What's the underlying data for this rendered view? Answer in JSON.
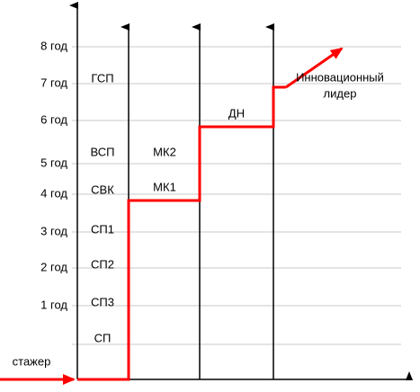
{
  "axis_labels": [
    "8 год",
    "7 год",
    "6 год",
    "5 год",
    "4 год",
    "3 год",
    "2 год",
    "1 год"
  ],
  "columns": [
    {
      "labels": [
        "ГСП",
        "ВСП",
        "СВК",
        "СП1",
        "СП2",
        "СП3",
        "СП"
      ]
    },
    {
      "labels": [
        "МК2",
        "МК1"
      ]
    },
    {
      "labels": [
        "ДН"
      ]
    }
  ],
  "leader": {
    "line1": "Инновационный",
    "line2": "лидер"
  },
  "start": "стажер"
}
